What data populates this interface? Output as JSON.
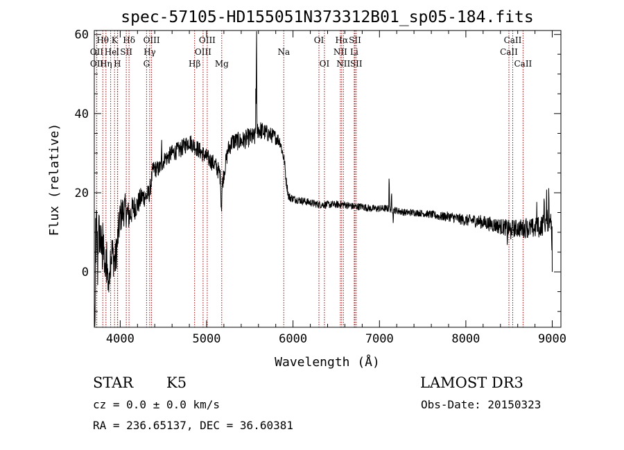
{
  "chart_data": {
    "type": "line",
    "title": "spec-57105-HD155051N373312B01_sp05-184.fits",
    "xlabel": "Wavelength (Å)",
    "ylabel": "Flux (relative)",
    "xlim": [
      3700,
      9100
    ],
    "ylim": [
      -14,
      61
    ],
    "xticks": [
      4000,
      5000,
      6000,
      7000,
      8000,
      9000
    ],
    "yticks": [
      0,
      20,
      40,
      60
    ],
    "line_color": "#000000",
    "marker_color": "#aa0000",
    "spectral_lines": [
      {
        "label": "Hθ",
        "wavelength": 3798,
        "row": 0
      },
      {
        "label": "OII",
        "wavelength": 3727,
        "row": 1
      },
      {
        "label": "OII",
        "wavelength": 3729,
        "row": 2
      },
      {
        "label": "He",
        "wavelength": 3889,
        "row": 1
      },
      {
        "label": "K",
        "wavelength": 3934,
        "row": 0
      },
      {
        "label": "Hη",
        "wavelength": 3835,
        "row": 2
      },
      {
        "label": "H",
        "wavelength": 3968,
        "row": 2
      },
      {
        "label": "I",
        "wavelength": 3970,
        "row": 1
      },
      {
        "label": "SII",
        "wavelength": 4070,
        "row": 1
      },
      {
        "label": "Hδ",
        "wavelength": 4102,
        "row": 0
      },
      {
        "label": "OIII",
        "wavelength": 4363,
        "row": 0
      },
      {
        "label": "Hγ",
        "wavelength": 4341,
        "row": 1
      },
      {
        "label": "G",
        "wavelength": 4305,
        "row": 2
      },
      {
        "label": "Hβ",
        "wavelength": 4861,
        "row": 2
      },
      {
        "label": "OIII",
        "wavelength": 5007,
        "row": 0
      },
      {
        "label": "OIII",
        "wavelength": 4959,
        "row": 1
      },
      {
        "label": "Mg",
        "wavelength": 5175,
        "row": 2
      },
      {
        "label": "Na",
        "wavelength": 5893,
        "row": 1
      },
      {
        "label": "OI",
        "wavelength": 6300,
        "row": 0
      },
      {
        "label": "OI",
        "wavelength": 6363,
        "row": 2
      },
      {
        "label": "Hα",
        "wavelength": 6563,
        "row": 0
      },
      {
        "label": "NII",
        "wavelength": 6548,
        "row": 1
      },
      {
        "label": "NII",
        "wavelength": 6583,
        "row": 2
      },
      {
        "label": "SII",
        "wavelength": 6717,
        "row": 0
      },
      {
        "label": "Li",
        "wavelength": 6708,
        "row": 1
      },
      {
        "label": "SII",
        "wavelength": 6731,
        "row": 2
      },
      {
        "label": "CaII",
        "wavelength": 8542,
        "row": 0
      },
      {
        "label": "CaII",
        "wavelength": 8498,
        "row": 1
      },
      {
        "label": "CaII",
        "wavelength": 8662,
        "row": 2
      }
    ],
    "anchors": [
      [
        3700,
        -10
      ],
      [
        3720,
        5
      ],
      [
        3740,
        8
      ],
      [
        3760,
        10
      ],
      [
        3780,
        6
      ],
      [
        3800,
        4
      ],
      [
        3820,
        3
      ],
      [
        3840,
        1
      ],
      [
        3860,
        -2
      ],
      [
        3880,
        3
      ],
      [
        3900,
        5
      ],
      [
        3920,
        4
      ],
      [
        3940,
        2
      ],
      [
        3960,
        6
      ],
      [
        3980,
        10
      ],
      [
        4000,
        14
      ],
      [
        4050,
        16
      ],
      [
        4100,
        14
      ],
      [
        4150,
        16
      ],
      [
        4200,
        17
      ],
      [
        4250,
        19
      ],
      [
        4300,
        19
      ],
      [
        4340,
        20
      ],
      [
        4380,
        26
      ],
      [
        4450,
        26
      ],
      [
        4500,
        28
      ],
      [
        4600,
        30
      ],
      [
        4700,
        31
      ],
      [
        4800,
        33
      ],
      [
        4850,
        32
      ],
      [
        4900,
        31
      ],
      [
        4950,
        30
      ],
      [
        5000,
        29
      ],
      [
        5050,
        28
      ],
      [
        5100,
        27
      ],
      [
        5150,
        25
      ],
      [
        5175,
        21
      ],
      [
        5200,
        25
      ],
      [
        5250,
        31
      ],
      [
        5300,
        33
      ],
      [
        5400,
        33
      ],
      [
        5500,
        34
      ],
      [
        5560,
        34
      ],
      [
        5580,
        36
      ],
      [
        5600,
        36
      ],
      [
        5700,
        35
      ],
      [
        5800,
        34
      ],
      [
        5850,
        33
      ],
      [
        5880,
        30
      ],
      [
        5900,
        28
      ],
      [
        5920,
        23
      ],
      [
        5950,
        19
      ],
      [
        6000,
        18.5
      ],
      [
        6100,
        18
      ],
      [
        6200,
        17.5
      ],
      [
        6300,
        17
      ],
      [
        6400,
        17
      ],
      [
        6500,
        17
      ],
      [
        6600,
        17
      ],
      [
        6700,
        16.5
      ],
      [
        6800,
        16.5
      ],
      [
        6900,
        16
      ],
      [
        7000,
        16
      ],
      [
        7100,
        16
      ],
      [
        7200,
        15.5
      ],
      [
        7300,
        15
      ],
      [
        7400,
        15
      ],
      [
        7500,
        14.8
      ],
      [
        7600,
        14.5
      ],
      [
        7700,
        14
      ],
      [
        7800,
        14
      ],
      [
        7900,
        13.5
      ],
      [
        8000,
        13
      ],
      [
        8100,
        13
      ],
      [
        8200,
        12.5
      ],
      [
        8300,
        12
      ],
      [
        8400,
        11.5
      ],
      [
        8500,
        11
      ],
      [
        8600,
        11
      ],
      [
        8700,
        11
      ],
      [
        8800,
        11
      ],
      [
        8900,
        12
      ],
      [
        8950,
        13
      ],
      [
        9000,
        12
      ]
    ],
    "noise": [
      [
        3700,
        7
      ],
      [
        3950,
        5
      ],
      [
        4200,
        3
      ],
      [
        4400,
        2.2
      ],
      [
        5000,
        2.2
      ],
      [
        5600,
        2.5
      ],
      [
        5900,
        1.5
      ],
      [
        6000,
        1.0
      ],
      [
        7500,
        0.9
      ],
      [
        8000,
        1.5
      ],
      [
        8500,
        2.2
      ],
      [
        9000,
        3
      ]
    ],
    "spikes": [
      [
        3708,
        -18
      ],
      [
        3715,
        10
      ],
      [
        3725,
        8
      ],
      [
        3740,
        -8
      ],
      [
        3800,
        12
      ],
      [
        3825,
        -8
      ],
      [
        3845,
        7
      ],
      [
        3870,
        -7
      ],
      [
        4480,
        5
      ],
      [
        4520,
        3
      ],
      [
        5168,
        -6
      ],
      [
        5173,
        -4
      ],
      [
        5570,
        13
      ],
      [
        5577,
        27
      ],
      [
        7112,
        9
      ],
      [
        7140,
        4
      ],
      [
        7160,
        -3
      ],
      [
        8480,
        -3
      ],
      [
        8520,
        -4
      ],
      [
        8700,
        4
      ],
      [
        8820,
        6
      ],
      [
        8850,
        -4
      ],
      [
        8905,
        9
      ],
      [
        8935,
        6
      ],
      [
        8960,
        8
      ],
      [
        8975,
        4
      ],
      [
        8995,
        -8
      ]
    ]
  },
  "info": {
    "object_class": "STAR",
    "subclass": "K5",
    "redshift": "cz = 0.0 ± 0.0 km/s",
    "coordinates": "RA = 236.65137, DEC =  36.60381",
    "survey": "LAMOST DR3",
    "obs_date": "Obs-Date: 20150323"
  }
}
